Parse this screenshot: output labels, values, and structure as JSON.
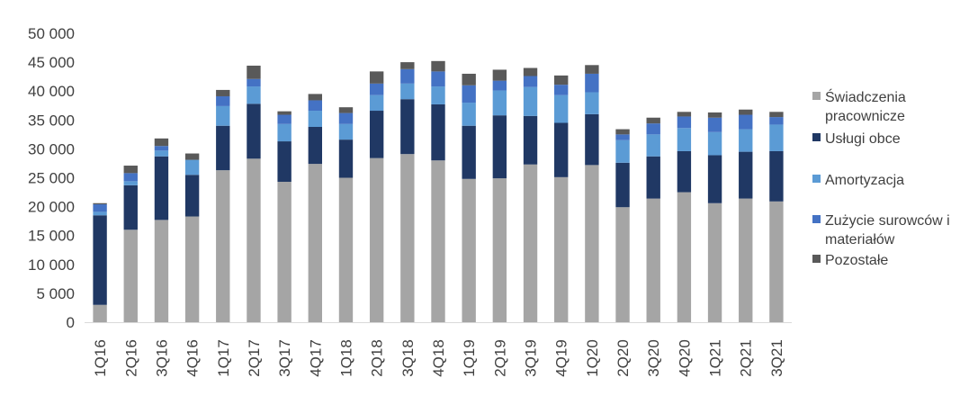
{
  "chart_data": {
    "type": "bar",
    "stacked": true,
    "title": "",
    "xlabel": "",
    "ylabel": "",
    "ylim": [
      0,
      50000
    ],
    "yticks": [
      0,
      5000,
      10000,
      15000,
      20000,
      25000,
      30000,
      35000,
      40000,
      45000,
      50000
    ],
    "ytick_labels": [
      "0",
      "5 000",
      "10 000",
      "15 000",
      "20 000",
      "25 000",
      "30 000",
      "35 000",
      "40 000",
      "45 000",
      "50 000"
    ],
    "grid": false,
    "legend_position": "right",
    "categories": [
      "1Q16",
      "2Q16",
      "3Q16",
      "4Q16",
      "1Q17",
      "2Q17",
      "3Q17",
      "4Q17",
      "1Q18",
      "2Q18",
      "3Q18",
      "4Q18",
      "1Q19",
      "2Q19",
      "3Q19",
      "4Q19",
      "1Q20",
      "2Q20",
      "3Q20",
      "4Q20",
      "1Q21",
      "2Q21",
      "3Q21"
    ],
    "series": [
      {
        "name": "Świadczenia pracownicze",
        "legend_lines": [
          "Świadczenia",
          "pracownicze"
        ],
        "color": "#a5a5a5",
        "values": [
          3000,
          16000,
          17700,
          18300,
          26300,
          28300,
          24300,
          27400,
          25000,
          28400,
          29100,
          28000,
          24800,
          24900,
          27300,
          25100,
          27200,
          19900,
          21400,
          22500,
          20600,
          21400,
          20900
        ]
      },
      {
        "name": "Usługi obce",
        "legend_lines": [
          "Usługi obce"
        ],
        "color": "#203864",
        "values": [
          15500,
          7700,
          11000,
          7200,
          7700,
          9500,
          7000,
          6400,
          6600,
          8200,
          9500,
          9700,
          9200,
          10900,
          8400,
          9400,
          8800,
          7700,
          7300,
          7100,
          8300,
          8100,
          8700
        ]
      },
      {
        "name": "Amortyzacja",
        "legend_lines": [
          "Amortyzacja"
        ],
        "color": "#5b9bd5",
        "values": [
          600,
          700,
          1000,
          2600,
          3400,
          3000,
          3000,
          2800,
          2700,
          2700,
          2700,
          3100,
          4000,
          4300,
          5000,
          4800,
          3800,
          3900,
          3800,
          4000,
          4000,
          3900,
          4600
        ]
      },
      {
        "name": "Zużycie surowców i materiałów",
        "legend_lines": [
          "Zużycie surowców i",
          "materiałów"
        ],
        "color": "#4472c4",
        "values": [
          1300,
          1400,
          800,
          0,
          1700,
          1300,
          1600,
          1800,
          1900,
          2000,
          2500,
          2600,
          3000,
          1700,
          1900,
          1800,
          3200,
          1000,
          1900,
          2000,
          2500,
          2500,
          1300
        ]
      },
      {
        "name": "Pozostałe",
        "legend_lines": [
          "Pozostałe"
        ],
        "color": "#595959",
        "values": [
          200,
          1300,
          1300,
          1100,
          1100,
          2300,
          600,
          1100,
          1000,
          2100,
          1200,
          1800,
          2000,
          1900,
          1400,
          1600,
          1500,
          900,
          1000,
          800,
          900,
          900,
          900
        ]
      }
    ]
  }
}
